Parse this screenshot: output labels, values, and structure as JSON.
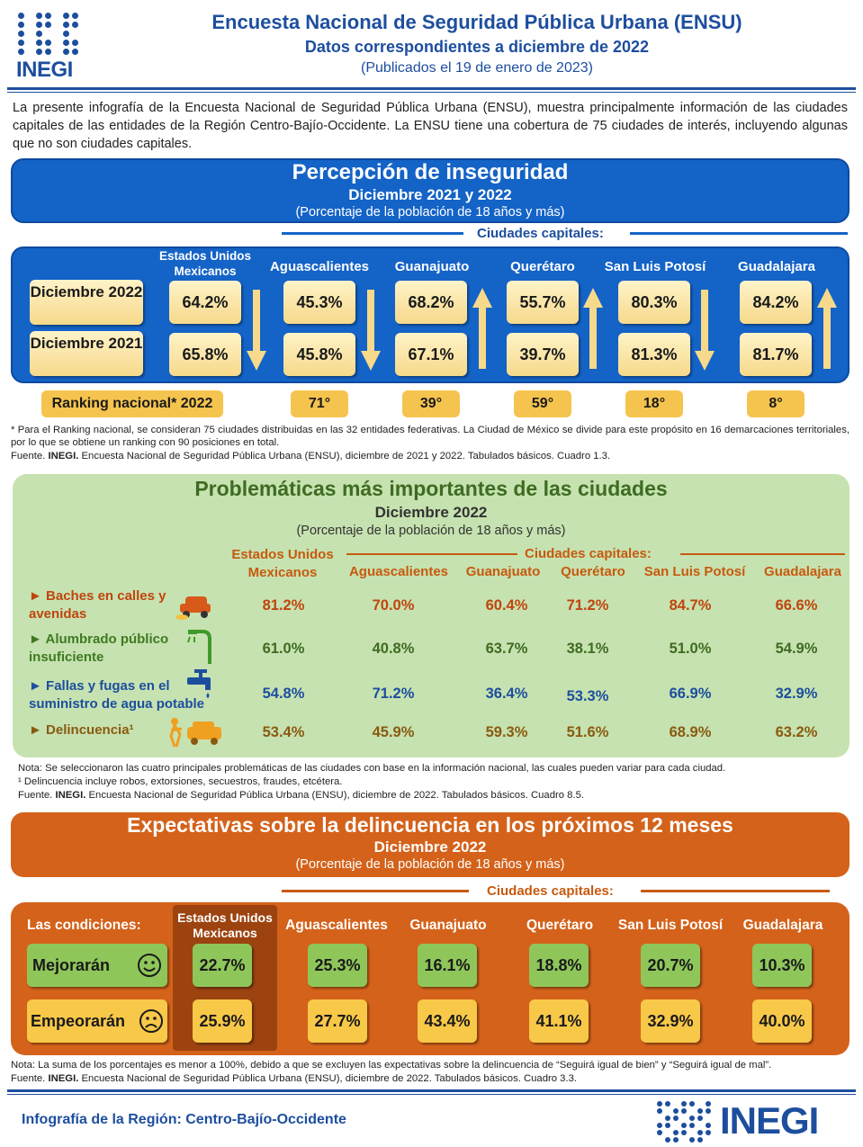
{
  "header": {
    "logo": "INEGI",
    "title": "Encuesta Nacional de Seguridad Pública Urbana (ENSU)",
    "subtitle": "Datos correspondientes a diciembre de 2022",
    "published": "(Publicados el 19 de enero de 2023)"
  },
  "intro": "La presente infografía de la Encuesta Nacional de Seguridad Pública Urbana (ENSU), muestra principalmente información de las ciudades capitales de las entidades de la Región Centro-Bajío-Occidente. La ENSU tiene una cobertura de 75 ciudades de interés, incluyendo algunas que no son ciudades capitales.",
  "percepcion": {
    "title": "Percepción de inseguridad",
    "period": "Diciembre 2021 y 2022",
    "unit": "(Porcentaje de la población de 18 años y más)",
    "cities_label": "Ciudades capitales:",
    "row_2022": "Diciembre 2022",
    "row_2021": "Diciembre 2021",
    "columns": [
      {
        "name": "Estados Unidos Mexicanos",
        "v2022": "64.2%",
        "v2021": "65.8%",
        "trend": "down",
        "rank": ""
      },
      {
        "name": "Aguascalientes",
        "v2022": "45.3%",
        "v2021": "45.8%",
        "trend": "down",
        "rank": "71°"
      },
      {
        "name": "Guanajuato",
        "v2022": "68.2%",
        "v2021": "67.1%",
        "trend": "up",
        "rank": "39°"
      },
      {
        "name": "Querétaro",
        "v2022": "55.7%",
        "v2021": "39.7%",
        "trend": "up",
        "rank": "59°"
      },
      {
        "name": "San Luis Potosí",
        "v2022": "80.3%",
        "v2021": "81.3%",
        "trend": "down",
        "rank": "18°"
      },
      {
        "name": "Guadalajara",
        "v2022": "84.2%",
        "v2021": "81.7%",
        "trend": "up",
        "rank": "8°"
      }
    ],
    "ranking_label": "Ranking nacional* 2022",
    "note1": "* Para el Ranking nacional, se consideran 75 ciudades distribuidas en las 32 entidades federativas. La Ciudad de México se divide para este propósito en 16 demarcaciones territoriales, por lo que se obtiene un ranking con 90 posiciones en total.",
    "source_prefix": "Fuente. ",
    "source_bold": "INEGI.",
    "source": " Encuesta Nacional de Seguridad Pública Urbana (ENSU), diciembre de 2021 y 2022. Tabulados básicos. Cuadro 1.3."
  },
  "problematicas": {
    "title": "Problemáticas más importantes de las ciudades",
    "period": "Diciembre 2022",
    "unit": "(Porcentaje de la población de 18 años y más)",
    "eum_header": "Estados Unidos Mexicanos",
    "cities_label": "Ciudades capitales:",
    "city_headers": [
      "Aguascalientes",
      "Guanajuato",
      "Querétaro",
      "San Luis Potosí",
      "Guadalajara"
    ],
    "rows": [
      {
        "label": "Baches en calles y avenidas",
        "values": [
          "81.2%",
          "70.0%",
          "60.4%",
          "71.2%",
          "84.7%",
          "66.6%"
        ],
        "color": "#c0450e"
      },
      {
        "label": "Alumbrado público insuficiente",
        "values": [
          "61.0%",
          "40.8%",
          "63.7%",
          "38.1%",
          "51.0%",
          "54.9%"
        ],
        "color": "#3f7a23"
      },
      {
        "label": "Fallas y fugas en el suministro de agua potable",
        "values": [
          "54.8%",
          "71.2%",
          "36.4%",
          "53.3%",
          "66.9%",
          "32.9%"
        ],
        "color": "#1d4e9e"
      },
      {
        "label": "Delincuencia¹",
        "values": [
          "53.4%",
          "45.9%",
          "59.3%",
          "51.6%",
          "68.9%",
          "63.2%"
        ],
        "color": "#8a5a10"
      }
    ],
    "note1": "Nota: Se seleccionaron las cuatro principales problemáticas de las ciudades con base en la información nacional, las cuales pueden variar para cada ciudad.",
    "note2": "¹ Delincuencia incluye robos, extorsiones, secuestros, fraudes, etcétera.",
    "source_prefix": "Fuente. ",
    "source_bold": "INEGI.",
    "source": " Encuesta Nacional de Seguridad Pública Urbana (ENSU), diciembre de 2022. Tabulados básicos. Cuadro 8.5."
  },
  "expectativas": {
    "title": "Expectativas sobre la delincuencia en los próximos 12 meses",
    "period": "Diciembre 2022",
    "unit": "(Porcentaje de la población de 18 años y más)",
    "cities_label": "Ciudades capitales:",
    "conditions_label": "Las condiciones:",
    "eum_header": "Estados Unidos Mexicanos",
    "city_headers": [
      "Aguascalientes",
      "Guanajuato",
      "Querétaro",
      "San Luis Potosí",
      "Guadalajara"
    ],
    "mejoraran_label": "Mejorarán",
    "empeoraran_label": "Empeorarán",
    "mejoraran": [
      "22.7%",
      "25.3%",
      "16.1%",
      "18.8%",
      "20.7%",
      "10.3%"
    ],
    "empeoraran": [
      "25.9%",
      "27.7%",
      "43.4%",
      "41.1%",
      "32.9%",
      "40.0%"
    ],
    "note": "Nota: La suma de los porcentajes es menor a 100%, debido a que se excluyen las expectativas sobre la delincuencia de “Seguirá igual de bien” y “Seguirá igual de mal”.",
    "source_prefix": "Fuente. ",
    "source_bold": "INEGI.",
    "source": " Encuesta Nacional de Seguridad Pública Urbana (ENSU), diciembre de 2022. Tabulados básicos. Cuadro 3.3."
  },
  "footer": {
    "title": "Infografía de la Región: Centro-Bajío-Occidente",
    "logo": "INEGI"
  },
  "colors": {
    "blue": "#1463c7",
    "dark_blue": "#1d4e9e",
    "green_panel": "#c6e2b0",
    "orange": "#d4621a",
    "yellow": "#f6d98a"
  }
}
